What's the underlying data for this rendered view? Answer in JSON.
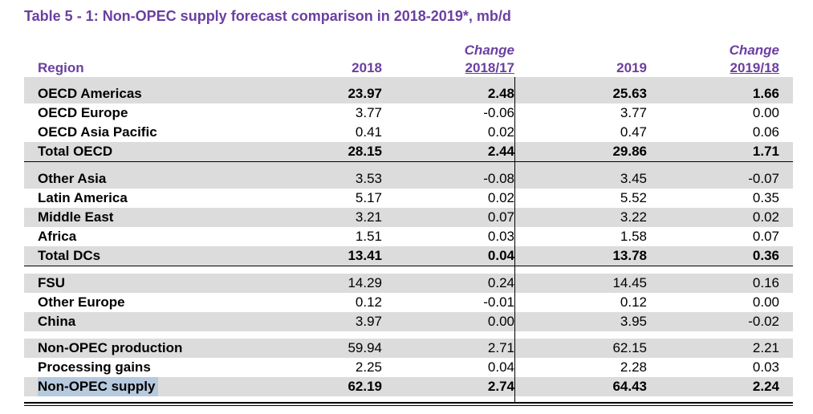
{
  "title": "Table 5 - 1: Non-OPEC supply forecast comparison in 2018-2019*, mb/d",
  "headers": {
    "region": "Region",
    "col1": "2018",
    "col2_top": "Change",
    "col2_bottom": "2018/17",
    "col3": "2019",
    "col4_top": "Change",
    "col4_bottom": "2019/18"
  },
  "rows": [
    {
      "label": "OECD Americas",
      "v1": "23.97",
      "v2": "2.48",
      "v3": "25.63",
      "v4": "1.66"
    },
    {
      "label": "OECD Europe",
      "v1": "3.77",
      "v2": "-0.06",
      "v3": "3.77",
      "v4": "0.00"
    },
    {
      "label": "OECD Asia Pacific",
      "v1": "0.41",
      "v2": "0.02",
      "v3": "0.47",
      "v4": "0.06"
    },
    {
      "label": "Total OECD",
      "v1": "28.15",
      "v2": "2.44",
      "v3": "29.86",
      "v4": "1.71"
    },
    {
      "label": "Other Asia",
      "v1": "3.53",
      "v2": "-0.08",
      "v3": "3.45",
      "v4": "-0.07"
    },
    {
      "label": "Latin America",
      "v1": "5.17",
      "v2": "0.02",
      "v3": "5.52",
      "v4": "0.35"
    },
    {
      "label": "Middle East",
      "v1": "3.21",
      "v2": "0.07",
      "v3": "3.22",
      "v4": "0.02"
    },
    {
      "label": "Africa",
      "v1": "1.51",
      "v2": "0.03",
      "v3": "1.58",
      "v4": "0.07"
    },
    {
      "label": "Total DCs",
      "v1": "13.41",
      "v2": "0.04",
      "v3": "13.78",
      "v4": "0.36"
    },
    {
      "label": "FSU",
      "v1": "14.29",
      "v2": "0.24",
      "v3": "14.45",
      "v4": "0.16"
    },
    {
      "label": "Other Europe",
      "v1": "0.12",
      "v2": "-0.01",
      "v3": "0.12",
      "v4": "0.00"
    },
    {
      "label": "China",
      "v1": "3.97",
      "v2": "0.00",
      "v3": "3.95",
      "v4": "-0.02"
    },
    {
      "label": "Non-OPEC production",
      "v1": "59.94",
      "v2": "2.71",
      "v3": "62.15",
      "v4": "2.21"
    },
    {
      "label": "Processing gains",
      "v1": "2.25",
      "v2": "0.04",
      "v3": "2.28",
      "v4": "0.03"
    },
    {
      "label": "Non-OPEC supply",
      "v1": "62.19",
      "v2": "2.74",
      "v3": "64.43",
      "v4": "2.24"
    }
  ]
}
